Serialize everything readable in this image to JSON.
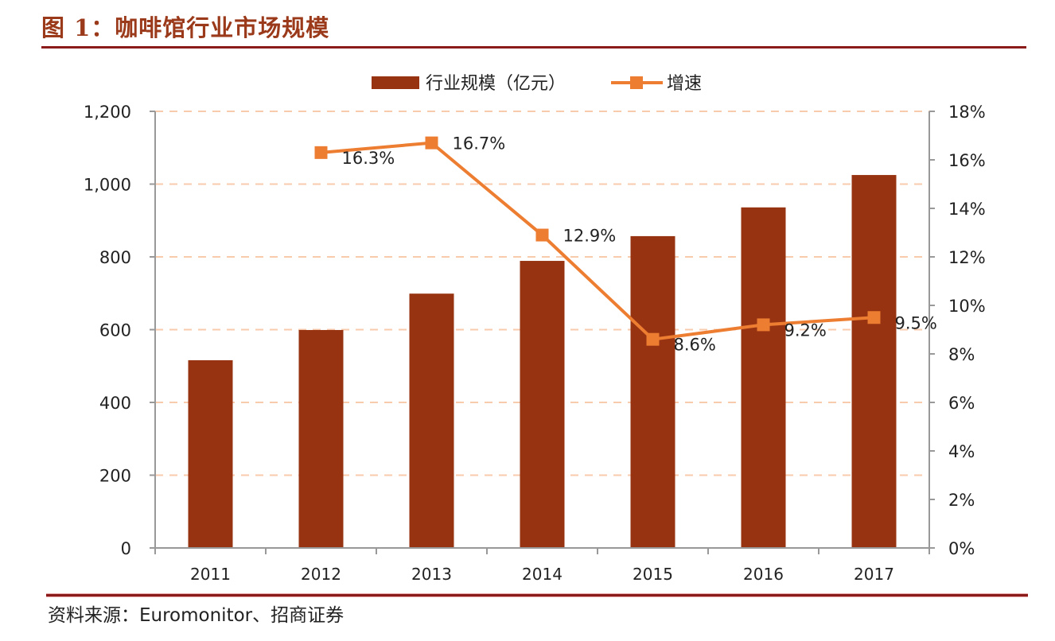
{
  "figure": {
    "title": "图 1：咖啡馆行业市场规模",
    "source": "资料来源：Euromonitor、招商证券"
  },
  "colors": {
    "bar": "#973311",
    "line": "#ed7d31",
    "grid": "#f8cbad",
    "axis": "#999999",
    "title": "#9b3a1a",
    "rule": "#8b1a1a"
  },
  "chart_data": {
    "type": "bar+line",
    "title": "咖啡馆行业市场规模",
    "categories": [
      "2011",
      "2012",
      "2013",
      "2014",
      "2015",
      "2016",
      "2017"
    ],
    "series": [
      {
        "name": "行业规模（亿元）",
        "type": "bar",
        "axis": "left",
        "values": [
          516,
          599,
          699,
          789,
          857,
          936,
          1025
        ]
      },
      {
        "name": "增速",
        "type": "line",
        "axis": "right",
        "values": [
          null,
          16.3,
          16.7,
          12.9,
          8.6,
          9.2,
          9.5
        ],
        "labels": [
          null,
          "16.3%",
          "16.7%",
          "12.9%",
          "8.6%",
          "9.2%",
          "9.5%"
        ]
      }
    ],
    "y_left": {
      "min": 0,
      "max": 1200,
      "ticks": [
        0,
        200,
        400,
        600,
        800,
        1000,
        1200
      ],
      "tick_labels": [
        "0",
        "200",
        "400",
        "600",
        "800",
        "1,000",
        "1,200"
      ]
    },
    "y_right": {
      "min": 0,
      "max": 18,
      "ticks": [
        0,
        2,
        4,
        6,
        8,
        10,
        12,
        14,
        16,
        18
      ],
      "tick_labels": [
        "0%",
        "2%",
        "4%",
        "6%",
        "8%",
        "10%",
        "12%",
        "14%",
        "16%",
        "18%"
      ]
    },
    "grid": "horizontal dashed",
    "legend": {
      "position": "top-center",
      "entries": [
        "行业规模（亿元）",
        "增速"
      ]
    }
  }
}
